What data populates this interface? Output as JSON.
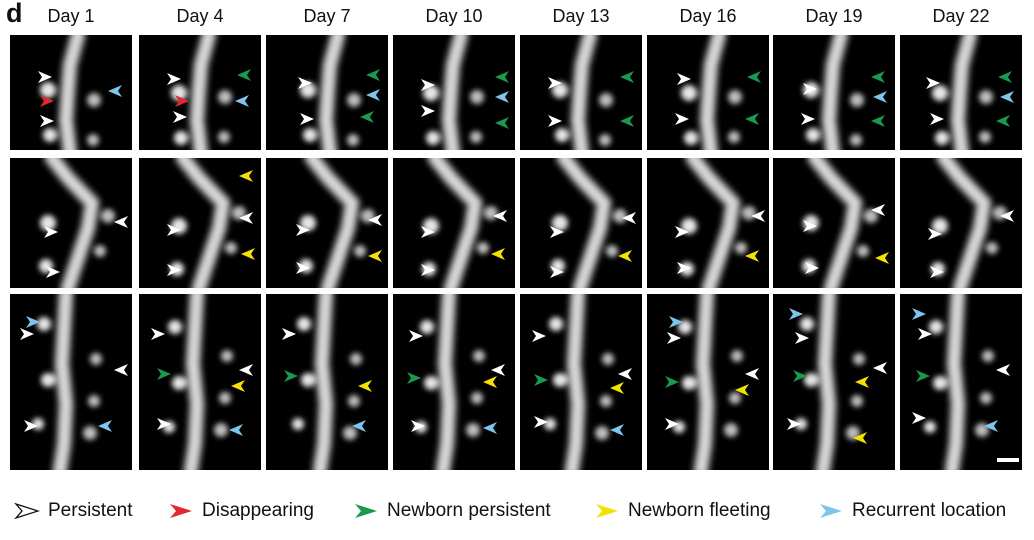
{
  "panel_label": "d",
  "days": [
    "Day 1",
    "Day 4",
    "Day 7",
    "Day 10",
    "Day 13",
    "Day 16",
    "Day 19",
    "Day 22"
  ],
  "colors": {
    "persistent": "#ffffff",
    "disappearing": "#e0282e",
    "newborn_persistent": "#1a9a4e",
    "newborn_fleeting": "#f2e200",
    "recurrent": "#7fc4ea"
  },
  "legend": [
    {
      "key": "persistent",
      "label": "Persistent"
    },
    {
      "key": "disappearing",
      "label": "Disappearing"
    },
    {
      "key": "newborn_persistent",
      "label": "Newborn persistent"
    },
    {
      "key": "newborn_fleeting",
      "label": "Newborn fleeting"
    },
    {
      "key": "recurrent",
      "label": "Recurrent location"
    }
  ]
}
